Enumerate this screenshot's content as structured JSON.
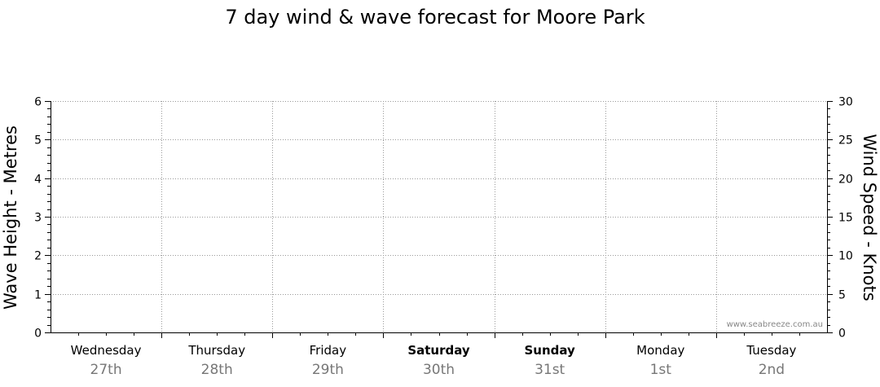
{
  "chart_data": {
    "type": "line",
    "title": "7 day wind & wave forecast for Moore Park",
    "left_axis": {
      "label": "Wave Height - Metres",
      "ylim": [
        0,
        6
      ],
      "ticks": [
        "0",
        "1",
        "2",
        "3",
        "4",
        "5",
        "6"
      ]
    },
    "right_axis": {
      "label": "Wind Speed - Knots",
      "ylim": [
        0,
        30
      ],
      "ticks": [
        "0",
        "5",
        "10",
        "15",
        "20",
        "25",
        "30"
      ]
    },
    "days": [
      {
        "name": "Wednesday",
        "date": "27th",
        "bold": false
      },
      {
        "name": "Thursday",
        "date": "28th",
        "bold": false
      },
      {
        "name": "Friday",
        "date": "29th",
        "bold": false
      },
      {
        "name": "Saturday",
        "date": "30th",
        "bold": true
      },
      {
        "name": "Sunday",
        "date": "31st",
        "bold": true
      },
      {
        "name": "Monday",
        "date": "1st",
        "bold": false
      },
      {
        "name": "Tuesday",
        "date": "2nd",
        "bold": false
      }
    ],
    "series": [],
    "grid": true,
    "watermark": "www.seabreeze.com.au"
  }
}
